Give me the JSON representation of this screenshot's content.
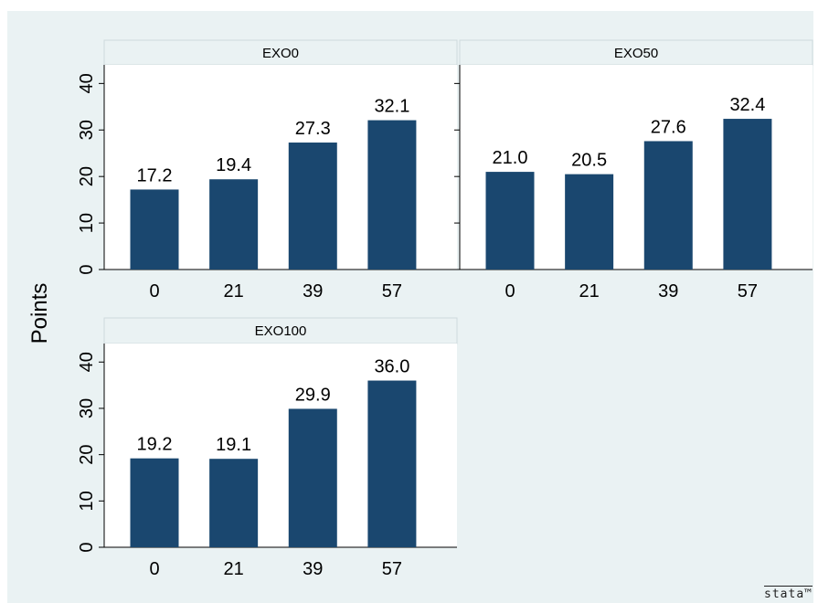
{
  "chart_data": {
    "type": "bar",
    "ylabel": "Points",
    "ylim": [
      0,
      44
    ],
    "yticks": [
      0,
      10,
      20,
      30,
      40
    ],
    "categories": [
      "0",
      "21",
      "39",
      "57"
    ],
    "grid": false,
    "colors": {
      "bar": "#1a476f",
      "background": "#eaf2f3",
      "strip": "#eaf2f3"
    },
    "panels": [
      {
        "title": "EXO0",
        "values": [
          17.2,
          19.4,
          27.3,
          32.1
        ],
        "labels": [
          "17.2",
          "19.4",
          "27.3",
          "32.1"
        ]
      },
      {
        "title": "EXO50",
        "values": [
          21.0,
          20.5,
          27.6,
          32.4
        ],
        "labels": [
          "21.0",
          "20.5",
          "27.6",
          "32.4"
        ]
      },
      {
        "title": "EXO100",
        "values": [
          19.2,
          19.1,
          29.9,
          36.0
        ],
        "labels": [
          "19.2",
          "19.1",
          "29.9",
          "36.0"
        ]
      }
    ]
  },
  "watermark": "stata™"
}
